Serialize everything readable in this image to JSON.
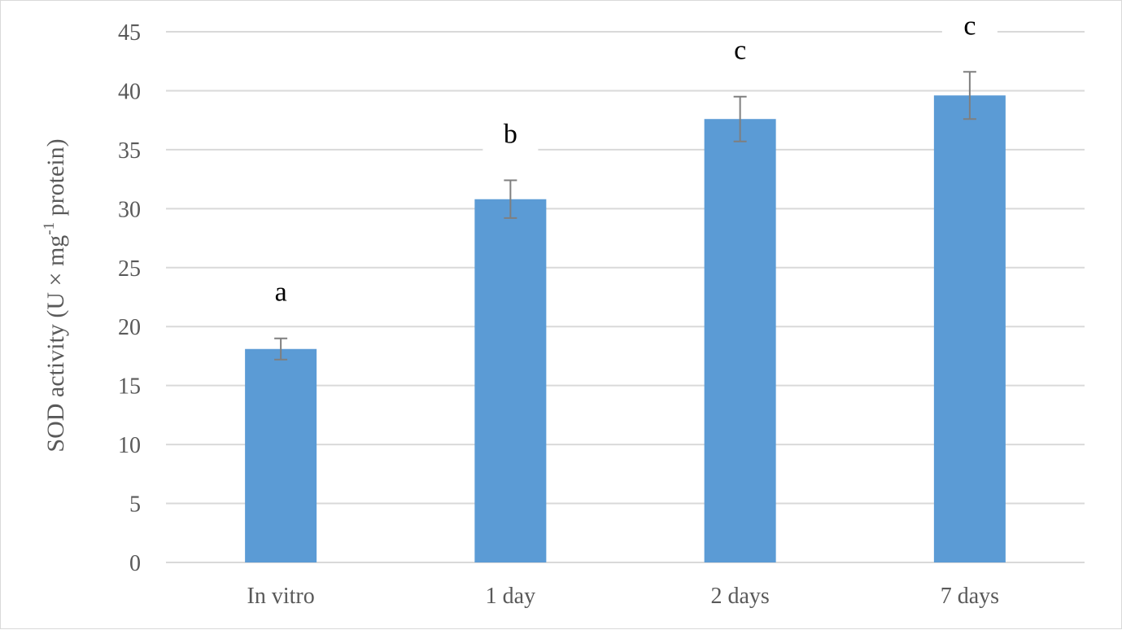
{
  "chart_data": {
    "type": "bar",
    "categories": [
      "In vitro",
      "1 day",
      "2 days",
      "7 days"
    ],
    "values": [
      18.1,
      30.8,
      37.6,
      39.6
    ],
    "errors": [
      0.9,
      1.6,
      1.9,
      2.0
    ],
    "significance_labels": [
      "a",
      "b",
      "c",
      "c"
    ],
    "title": "",
    "xlabel": "",
    "ylabel_main": "SOD activity (U × mg",
    "ylabel_sup": "-1",
    "ylabel_tail": " protein)",
    "ylim": [
      0,
      45
    ],
    "yticks": [
      0,
      5,
      10,
      15,
      20,
      25,
      30,
      35,
      40,
      45
    ],
    "grid": true,
    "colors": {
      "bar": "#5b9bd5",
      "error_bar": "#7f7f7f",
      "grid": "#d9d9d9",
      "axis_text": "#595959",
      "label_text": "#000000"
    }
  }
}
